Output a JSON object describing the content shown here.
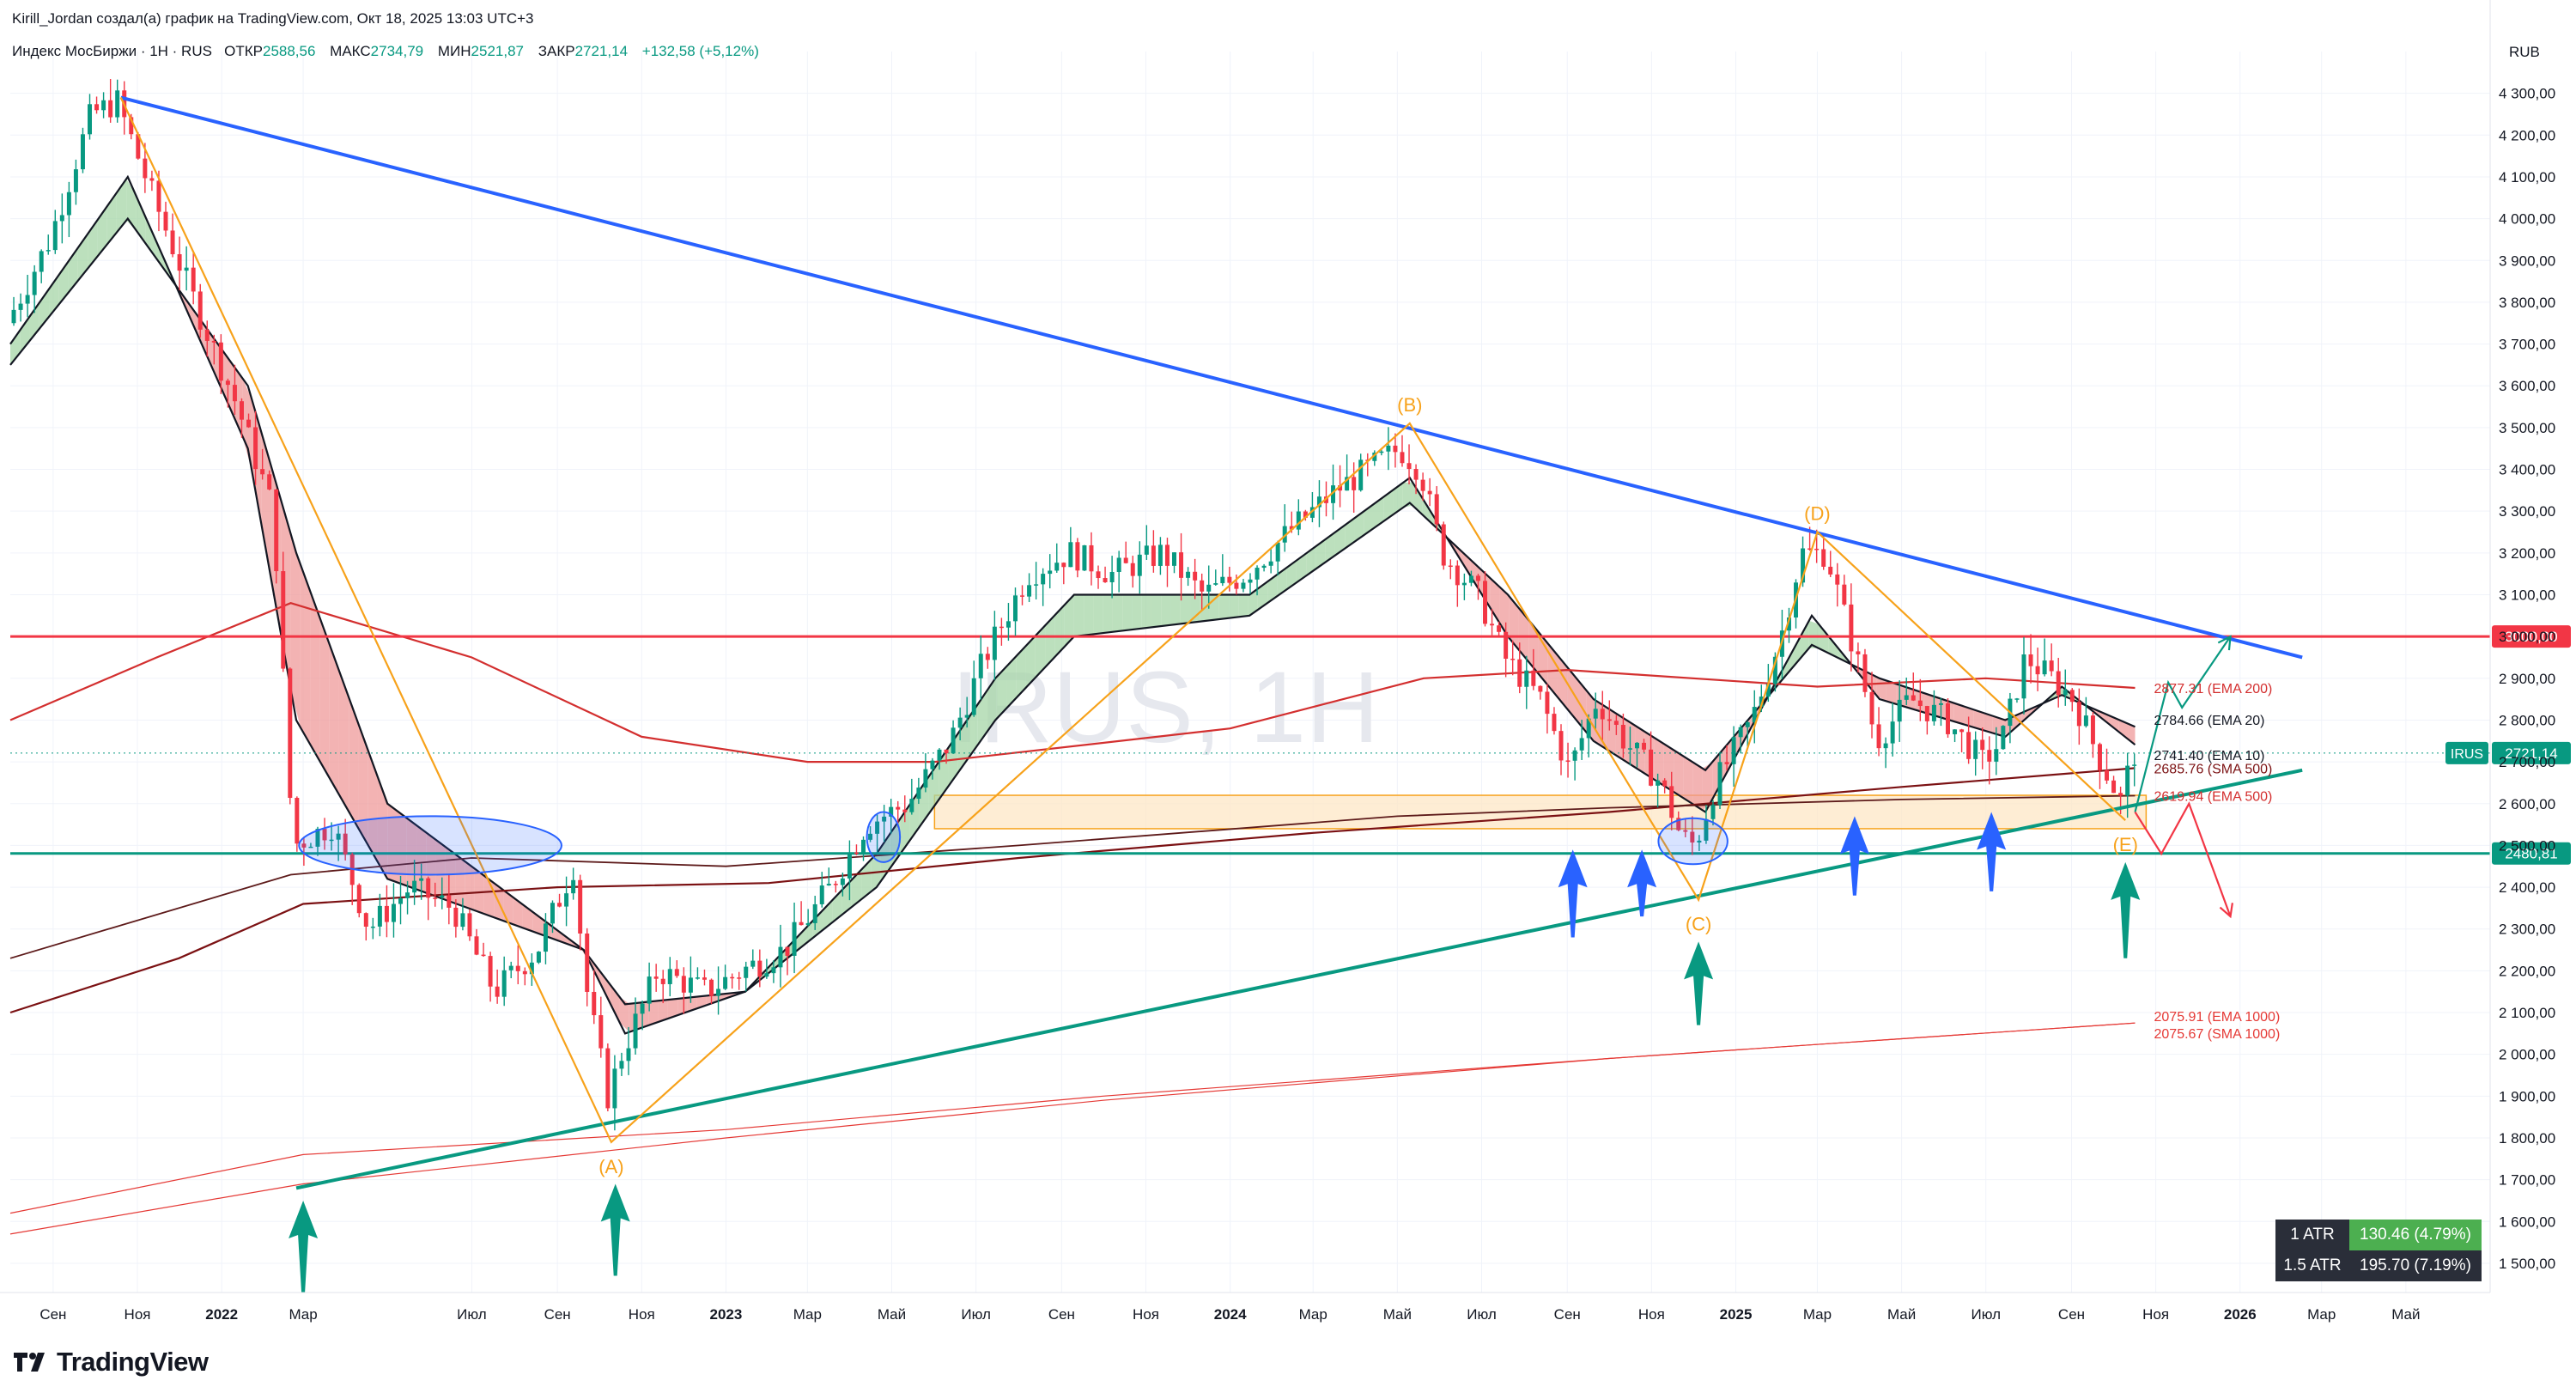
{
  "header": {
    "author_line": "Kirill_Jordan создал(а) график на TradingView.com, Окт 18, 2025 13:03 UTC+3",
    "symbol_line": "Индекс МосБиржи · 1H · RUS",
    "ohlc": [
      {
        "label": "ОТКР",
        "value": "2588,56"
      },
      {
        "label": "МАКС",
        "value": "2734,79"
      },
      {
        "label": "МИН",
        "value": "2521,87"
      },
      {
        "label": "ЗАКР",
        "value": "2721,14"
      },
      {
        "label": "",
        "value": "+132,58 (+5,12%)"
      }
    ]
  },
  "watermark": "IRUS, 1H",
  "currency": "RUB",
  "colors": {
    "up": "#089981",
    "down": "#f23645",
    "trend_blue": "#2962ff",
    "trend_teal": "#089981",
    "wave_orange": "#f7a21b",
    "level_red": "#f23645",
    "ema200": "#d32f2f",
    "sma500": "#7b1113",
    "ema1000": "#e53935",
    "ema_ribbon_up": "#a5d6a7",
    "ema_ribbon_down": "#ef9a9a"
  },
  "chart_data": {
    "type": "candlestick",
    "title": "IRUS, 1H",
    "y_axis": {
      "range": [
        1430,
        4400
      ],
      "ticks": [
        "1 500,00",
        "1 600,00",
        "1 700,00",
        "1 800,00",
        "1 900,00",
        "2 000,00",
        "2 100,00",
        "2 200,00",
        "2 300,00",
        "2 400,00",
        "2 500,00",
        "2 600,00",
        "2 700,00",
        "2 800,00",
        "2 900,00",
        "3 000,00",
        "3 100,00",
        "3 200,00",
        "3 300,00",
        "3 400,00",
        "3 500,00",
        "3 600,00",
        "3 700,00",
        "3 800,00",
        "3 900,00",
        "4 000,00",
        "4 100,00",
        "4 200,00",
        "4 300,00"
      ]
    },
    "x_axis": {
      "range": [
        "2021-08-01",
        "2026-07-01"
      ],
      "ticks": [
        {
          "label": "Сен",
          "date": "2021-09-01",
          "bold": false
        },
        {
          "label": "Ноя",
          "date": "2021-11-01",
          "bold": false
        },
        {
          "label": "2022",
          "date": "2022-01-01",
          "bold": true
        },
        {
          "label": "Мар",
          "date": "2022-03-01",
          "bold": false
        },
        {
          "label": "Июл",
          "date": "2022-07-01",
          "bold": false
        },
        {
          "label": "Сен",
          "date": "2022-09-01",
          "bold": false
        },
        {
          "label": "Ноя",
          "date": "2022-11-01",
          "bold": false
        },
        {
          "label": "2023",
          "date": "2023-01-01",
          "bold": true
        },
        {
          "label": "Мар",
          "date": "2023-03-01",
          "bold": false
        },
        {
          "label": "Май",
          "date": "2023-05-01",
          "bold": false
        },
        {
          "label": "Июл",
          "date": "2023-07-01",
          "bold": false
        },
        {
          "label": "Сен",
          "date": "2023-09-01",
          "bold": false
        },
        {
          "label": "Ноя",
          "date": "2023-11-01",
          "bold": false
        },
        {
          "label": "2024",
          "date": "2024-01-01",
          "bold": true
        },
        {
          "label": "Мар",
          "date": "2024-03-01",
          "bold": false
        },
        {
          "label": "Май",
          "date": "2024-05-01",
          "bold": false
        },
        {
          "label": "Июл",
          "date": "2024-07-01",
          "bold": false
        },
        {
          "label": "Сен",
          "date": "2024-09-01",
          "bold": false
        },
        {
          "label": "Ноя",
          "date": "2024-11-01",
          "bold": false
        },
        {
          "label": "2025",
          "date": "2025-01-01",
          "bold": true
        },
        {
          "label": "Мар",
          "date": "2025-03-01",
          "bold": false
        },
        {
          "label": "Май",
          "date": "2025-05-01",
          "bold": false
        },
        {
          "label": "Июл",
          "date": "2025-07-01",
          "bold": false
        },
        {
          "label": "Сен",
          "date": "2025-09-01",
          "bold": false
        },
        {
          "label": "Ноя",
          "date": "2025-11-01",
          "bold": false
        },
        {
          "label": "2026",
          "date": "2026-01-01",
          "bold": true
        },
        {
          "label": "Мар",
          "date": "2026-03-01",
          "bold": false
        },
        {
          "label": "Май",
          "date": "2026-05-01",
          "bold": false
        }
      ]
    },
    "price_path": [
      [
        "2021-08-01",
        3750
      ],
      [
        "2021-09-01",
        3950
      ],
      [
        "2021-10-01",
        4250
      ],
      [
        "2021-10-20",
        4280
      ],
      [
        "2021-11-15",
        4050
      ],
      [
        "2021-12-15",
        3800
      ],
      [
        "2022-01-15",
        3550
      ],
      [
        "2022-02-10",
        3300
      ],
      [
        "2022-02-24",
        2500
      ],
      [
        "2022-03-25",
        2550
      ],
      [
        "2022-04-20",
        2300
      ],
      [
        "2022-05-20",
        2400
      ],
      [
        "2022-06-20",
        2350
      ],
      [
        "2022-07-20",
        2150
      ],
      [
        "2022-08-20",
        2250
      ],
      [
        "2022-09-15",
        2450
      ],
      [
        "2022-09-25",
        2150
      ],
      [
        "2022-10-10",
        1900
      ],
      [
        "2022-10-20",
        2000
      ],
      [
        "2022-11-15",
        2200
      ],
      [
        "2022-12-20",
        2150
      ],
      [
        "2023-01-15",
        2200
      ],
      [
        "2023-02-15",
        2250
      ],
      [
        "2023-03-20",
        2400
      ],
      [
        "2023-04-15",
        2550
      ],
      [
        "2023-05-15",
        2600
      ],
      [
        "2023-06-15",
        2750
      ],
      [
        "2023-07-10",
        2950
      ],
      [
        "2023-08-10",
        3150
      ],
      [
        "2023-09-10",
        3200
      ],
      [
        "2023-10-10",
        3150
      ],
      [
        "2023-11-15",
        3200
      ],
      [
        "2023-12-15",
        3100
      ],
      [
        "2024-01-15",
        3150
      ],
      [
        "2024-02-15",
        3250
      ],
      [
        "2024-03-20",
        3350
      ],
      [
        "2024-05-05",
        3450
      ],
      [
        "2024-05-20",
        3400
      ],
      [
        "2024-06-05",
        3200
      ],
      [
        "2024-07-01",
        3100
      ],
      [
        "2024-07-20",
        2950
      ],
      [
        "2024-08-15",
        2850
      ],
      [
        "2024-09-05",
        2680
      ],
      [
        "2024-09-25",
        2850
      ],
      [
        "2024-10-15",
        2750
      ],
      [
        "2024-11-10",
        2650
      ],
      [
        "2024-11-25",
        2520
      ],
      [
        "2024-12-05",
        2500
      ],
      [
        "2024-12-20",
        2650
      ],
      [
        "2025-01-15",
        2800
      ],
      [
        "2025-02-05",
        3000
      ],
      [
        "2025-02-20",
        3200
      ],
      [
        "2025-03-10",
        3200
      ],
      [
        "2025-04-05",
        2900
      ],
      [
        "2025-04-15",
        2750
      ],
      [
        "2025-05-10",
        2850
      ],
      [
        "2025-06-05",
        2800
      ],
      [
        "2025-07-01",
        2700
      ],
      [
        "2025-07-15",
        2750
      ],
      [
        "2025-08-01",
        2950
      ],
      [
        "2025-08-20",
        2900
      ],
      [
        "2025-09-05",
        2850
      ],
      [
        "2025-09-25",
        2700
      ],
      [
        "2025-10-10",
        2600
      ],
      [
        "2025-10-17",
        2721
      ]
    ],
    "series": [
      {
        "name": "EMA 10",
        "last_label": "2741.40 (EMA 10)",
        "points": [
          [
            "2021-08-01",
            3700
          ],
          [
            "2021-10-25",
            4100
          ],
          [
            "2022-01-20",
            3450
          ],
          [
            "2022-02-24",
            2800
          ],
          [
            "2022-05-01",
            2420
          ],
          [
            "2022-09-20",
            2250
          ],
          [
            "2022-10-20",
            2050
          ],
          [
            "2023-01-15",
            2150
          ],
          [
            "2023-04-20",
            2480
          ],
          [
            "2023-07-15",
            2900
          ],
          [
            "2023-09-10",
            3100
          ],
          [
            "2024-01-15",
            3100
          ],
          [
            "2024-05-10",
            3380
          ],
          [
            "2024-07-20",
            3000
          ],
          [
            "2024-09-20",
            2750
          ],
          [
            "2024-12-10",
            2580
          ],
          [
            "2025-02-25",
            3050
          ],
          [
            "2025-04-15",
            2850
          ],
          [
            "2025-07-15",
            2760
          ],
          [
            "2025-08-25",
            2880
          ],
          [
            "2025-10-17",
            2741
          ]
        ]
      },
      {
        "name": "EMA 20",
        "last_label": "2784.66 (EMA 20)",
        "points": [
          [
            "2021-08-01",
            3650
          ],
          [
            "2021-10-25",
            4000
          ],
          [
            "2022-01-20",
            3600
          ],
          [
            "2022-02-24",
            3200
          ],
          [
            "2022-05-01",
            2600
          ],
          [
            "2022-09-20",
            2250
          ],
          [
            "2022-10-20",
            2120
          ],
          [
            "2023-01-15",
            2150
          ],
          [
            "2023-04-20",
            2400
          ],
          [
            "2023-07-15",
            2800
          ],
          [
            "2023-09-10",
            3000
          ],
          [
            "2024-01-15",
            3050
          ],
          [
            "2024-05-10",
            3320
          ],
          [
            "2024-07-20",
            3100
          ],
          [
            "2024-09-20",
            2850
          ],
          [
            "2024-12-10",
            2680
          ],
          [
            "2025-02-25",
            2980
          ],
          [
            "2025-04-15",
            2900
          ],
          [
            "2025-07-15",
            2800
          ],
          [
            "2025-08-25",
            2860
          ],
          [
            "2025-10-17",
            2784
          ]
        ]
      },
      {
        "name": "EMA 200",
        "last_label": "2877.31 (EMA 200)",
        "points": [
          [
            "2021-08-01",
            2800
          ],
          [
            "2021-11-15",
            2950
          ],
          [
            "2022-02-20",
            3080
          ],
          [
            "2022-07-01",
            2950
          ],
          [
            "2022-11-01",
            2760
          ],
          [
            "2023-03-01",
            2700
          ],
          [
            "2023-06-01",
            2700
          ],
          [
            "2024-01-01",
            2780
          ],
          [
            "2024-05-20",
            2900
          ],
          [
            "2024-09-01",
            2920
          ],
          [
            "2025-03-01",
            2880
          ],
          [
            "2025-07-01",
            2900
          ],
          [
            "2025-10-17",
            2877
          ]
        ]
      },
      {
        "name": "SMA 500",
        "last_label": "2685.76 (SMA 500)",
        "points": [
          [
            "2021-08-01",
            2100
          ],
          [
            "2021-12-01",
            2230
          ],
          [
            "2022-03-01",
            2360
          ],
          [
            "2022-09-01",
            2400
          ],
          [
            "2023-02-01",
            2410
          ],
          [
            "2023-08-01",
            2470
          ],
          [
            "2024-03-01",
            2530
          ],
          [
            "2024-10-01",
            2580
          ],
          [
            "2025-05-01",
            2640
          ],
          [
            "2025-10-17",
            2685
          ]
        ]
      },
      {
        "name": "EMA 500",
        "last_label": "2619.94 (EMA 500)",
        "points": [
          [
            "2021-08-01",
            2230
          ],
          [
            "2022-02-20",
            2430
          ],
          [
            "2022-07-01",
            2470
          ],
          [
            "2023-01-01",
            2450
          ],
          [
            "2023-08-01",
            2500
          ],
          [
            "2024-05-01",
            2570
          ],
          [
            "2024-10-01",
            2590
          ],
          [
            "2025-05-01",
            2610
          ],
          [
            "2025-10-17",
            2619
          ]
        ]
      },
      {
        "name": "EMA 1000",
        "last_label": "2075.91 (EMA 1000)",
        "points": [
          [
            "2021-08-01",
            1620
          ],
          [
            "2022-03-01",
            1760
          ],
          [
            "2023-01-01",
            1820
          ],
          [
            "2023-10-01",
            1900
          ],
          [
            "2024-10-01",
            1990
          ],
          [
            "2025-10-17",
            2075
          ]
        ]
      },
      {
        "name": "SMA 1000",
        "last_label": "2075.67 (SMA 1000)",
        "points": [
          [
            "2021-08-01",
            1570
          ],
          [
            "2022-03-01",
            1690
          ],
          [
            "2023-01-01",
            1800
          ],
          [
            "2023-10-01",
            1890
          ],
          [
            "2024-10-01",
            1990
          ],
          [
            "2025-10-17",
            2075
          ]
        ]
      }
    ],
    "trendlines": [
      {
        "name": "descending",
        "color": "blue",
        "from": [
          "2021-10-20",
          4290
        ],
        "to": [
          "2026-02-15",
          2950
        ]
      },
      {
        "name": "ascending",
        "color": "teal",
        "from": [
          "2022-02-24",
          1680
        ],
        "to": [
          "2026-02-15",
          2680
        ]
      }
    ],
    "levels": [
      {
        "value": 3000,
        "label": "3000,00",
        "color": "red"
      },
      {
        "value": 2480.81,
        "label": "2480,81",
        "color": "teal"
      }
    ],
    "last_price": {
      "value": 2721.14,
      "symbol": "IRUS",
      "label": "2721,14"
    },
    "zone": {
      "from": "2023-06-01",
      "to": "2025-10-25",
      "low": 2540,
      "high": 2620
    },
    "waves": [
      {
        "label": "(A)",
        "date": "2022-10-10",
        "value": 1790,
        "pos": "below"
      },
      {
        "label": "(B)",
        "date": "2024-05-10",
        "value": 3510,
        "pos": "above"
      },
      {
        "label": "(C)",
        "date": "2024-12-05",
        "value": 2370,
        "pos": "below"
      },
      {
        "label": "(D)",
        "date": "2025-03-01",
        "value": 3250,
        "pos": "above"
      },
      {
        "label": "(E)",
        "date": "2025-10-10",
        "value": 2560,
        "pos": "below"
      }
    ],
    "wave_path": [
      [
        "2021-10-20",
        4290
      ],
      [
        "2022-10-10",
        1790
      ],
      [
        "2024-05-10",
        3510
      ],
      [
        "2024-12-05",
        2370
      ],
      [
        "2025-03-01",
        3250
      ],
      [
        "2025-10-10",
        2560
      ]
    ],
    "projections": [
      {
        "color": "teal",
        "points": [
          [
            "2025-10-17",
            2580
          ],
          [
            "2025-11-10",
            2890
          ],
          [
            "2025-11-20",
            2830
          ],
          [
            "2025-12-25",
            3000
          ]
        ]
      },
      {
        "color": "red",
        "points": [
          [
            "2025-10-17",
            2580
          ],
          [
            "2025-11-05",
            2480
          ],
          [
            "2025-11-25",
            2600
          ],
          [
            "2025-12-25",
            2330
          ]
        ]
      }
    ],
    "ellipses": [
      {
        "cx": "2022-06-01",
        "cy": 2500,
        "rx_days": 95,
        "ry": 70
      },
      {
        "cx": "2023-04-25",
        "cy": 2520,
        "rx_days": 12,
        "ry": 60
      },
      {
        "cx": "2024-12-01",
        "cy": 2510,
        "rx_days": 25,
        "ry": 55
      }
    ],
    "arrows": [
      {
        "date": "2022-03-01",
        "tip": 1650,
        "tail": 1430,
        "color": "teal"
      },
      {
        "date": "2022-10-13",
        "tip": 1690,
        "tail": 1470,
        "color": "teal"
      },
      {
        "date": "2024-09-05",
        "tip": 2490,
        "tail": 2280,
        "color": "blue"
      },
      {
        "date": "2024-10-25",
        "tip": 2490,
        "tail": 2330,
        "color": "blue"
      },
      {
        "date": "2024-12-05",
        "tip": 2270,
        "tail": 2070,
        "color": "teal"
      },
      {
        "date": "2025-03-28",
        "tip": 2570,
        "tail": 2380,
        "color": "blue"
      },
      {
        "date": "2025-07-05",
        "tip": 2580,
        "tail": 2390,
        "color": "blue"
      },
      {
        "date": "2025-10-10",
        "tip": 2460,
        "tail": 2230,
        "color": "teal"
      }
    ]
  },
  "atr": [
    {
      "key": "1 ATR",
      "value": "130.46 (4.79%)",
      "color": "#4caf50"
    },
    {
      "key": "1.5 ATR",
      "value": "195.70 (7.19%)",
      "color": "#2a2e39"
    }
  ],
  "branding": {
    "name": "TradingView"
  }
}
